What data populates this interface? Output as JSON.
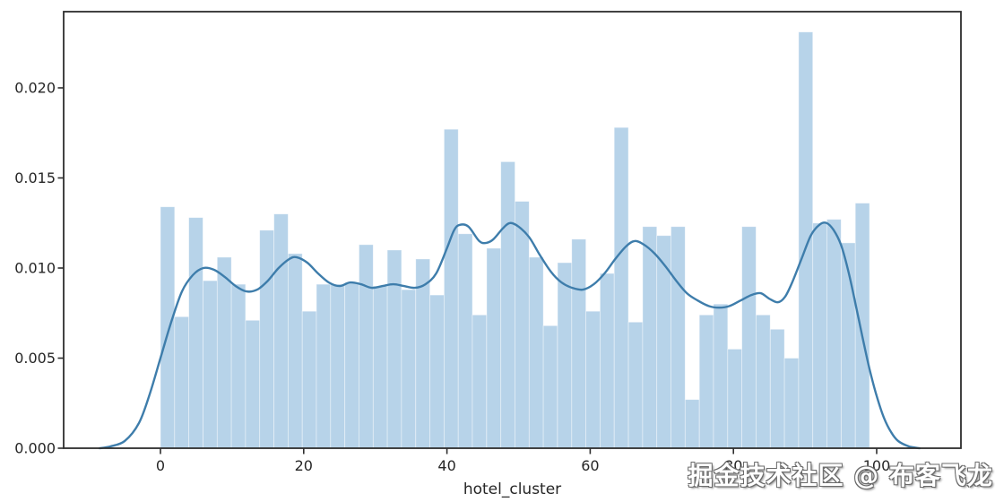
{
  "chart_data": {
    "type": "bar",
    "subtype": "histogram_with_kde",
    "title": "",
    "xlabel": "hotel_cluster",
    "ylabel": "",
    "x_tick_labels": [
      "0",
      "20",
      "40",
      "60",
      "80",
      "100"
    ],
    "x_tick_values": [
      0,
      20,
      40,
      60,
      80,
      100
    ],
    "y_tick_labels": [
      "0.000",
      "0.005",
      "0.010",
      "0.015",
      "0.020"
    ],
    "y_tick_values": [
      0.0,
      0.005,
      0.01,
      0.015,
      0.02
    ],
    "xlim": [
      -13.5,
      111.8
    ],
    "ylim": [
      0,
      0.0242
    ],
    "grid": false,
    "legend": null,
    "bin_start": 0,
    "bin_width": 1.98,
    "values": [
      0.0134,
      0.0073,
      0.0128,
      0.0093,
      0.0106,
      0.0091,
      0.0071,
      0.0121,
      0.013,
      0.0108,
      0.0076,
      0.0091,
      0.0091,
      0.0092,
      0.0113,
      0.009,
      0.011,
      0.0088,
      0.0105,
      0.0085,
      0.0177,
      0.0119,
      0.0074,
      0.0111,
      0.0159,
      0.0137,
      0.0106,
      0.0068,
      0.0103,
      0.0116,
      0.0076,
      0.0097,
      0.0178,
      0.007,
      0.0123,
      0.0118,
      0.0123,
      0.0027,
      0.0074,
      0.008,
      0.0055,
      0.0123,
      0.0074,
      0.0066,
      0.005,
      0.0231,
      0.0125,
      0.0127,
      0.0114,
      0.0136
    ],
    "kde_points": [
      [
        -8.5,
        0.0
      ],
      [
        -7,
        0.0001
      ],
      [
        -5,
        0.0004
      ],
      [
        -3,
        0.0014
      ],
      [
        -1.5,
        0.003
      ],
      [
        0,
        0.005
      ],
      [
        1.5,
        0.007
      ],
      [
        3,
        0.0087
      ],
      [
        4.5,
        0.0096
      ],
      [
        6,
        0.01
      ],
      [
        7.5,
        0.0099
      ],
      [
        9,
        0.0095
      ],
      [
        10.5,
        0.009
      ],
      [
        12,
        0.0087
      ],
      [
        13.5,
        0.0088
      ],
      [
        15,
        0.0093
      ],
      [
        16.5,
        0.01
      ],
      [
        18,
        0.0105
      ],
      [
        19,
        0.0106
      ],
      [
        20.5,
        0.0103
      ],
      [
        22,
        0.0097
      ],
      [
        23.5,
        0.0092
      ],
      [
        25,
        0.009
      ],
      [
        26.5,
        0.0092
      ],
      [
        28,
        0.0091
      ],
      [
        29.5,
        0.0089
      ],
      [
        31,
        0.009
      ],
      [
        32.5,
        0.0091
      ],
      [
        34,
        0.009
      ],
      [
        35.5,
        0.0089
      ],
      [
        37,
        0.0091
      ],
      [
        38.5,
        0.0097
      ],
      [
        40,
        0.0111
      ],
      [
        41,
        0.0121
      ],
      [
        41.8,
        0.0124
      ],
      [
        43,
        0.0123
      ],
      [
        44.5,
        0.0115
      ],
      [
        45.5,
        0.0114
      ],
      [
        46.5,
        0.0116
      ],
      [
        47.8,
        0.0122
      ],
      [
        48.8,
        0.0125
      ],
      [
        50,
        0.0123
      ],
      [
        51.5,
        0.0117
      ],
      [
        53,
        0.0107
      ],
      [
        54.5,
        0.0098
      ],
      [
        56,
        0.0092
      ],
      [
        57.5,
        0.0089
      ],
      [
        59,
        0.0088
      ],
      [
        60.5,
        0.0091
      ],
      [
        62,
        0.0097
      ],
      [
        63.5,
        0.0105
      ],
      [
        65,
        0.0112
      ],
      [
        66.2,
        0.0115
      ],
      [
        67.5,
        0.0113
      ],
      [
        69,
        0.0108
      ],
      [
        70.5,
        0.0101
      ],
      [
        72,
        0.0093
      ],
      [
        73.5,
        0.0086
      ],
      [
        75,
        0.0082
      ],
      [
        76.5,
        0.0079
      ],
      [
        78,
        0.0078
      ],
      [
        79.5,
        0.0079
      ],
      [
        81,
        0.0082
      ],
      [
        82.5,
        0.0085
      ],
      [
        83.8,
        0.0086
      ],
      [
        85,
        0.0083
      ],
      [
        86.2,
        0.0081
      ],
      [
        87.2,
        0.0084
      ],
      [
        88.2,
        0.0092
      ],
      [
        89.5,
        0.0105
      ],
      [
        90.8,
        0.0118
      ],
      [
        92,
        0.0124
      ],
      [
        93,
        0.0125
      ],
      [
        94,
        0.0121
      ],
      [
        95,
        0.0113
      ],
      [
        96,
        0.0099
      ],
      [
        97,
        0.0081
      ],
      [
        98,
        0.0062
      ],
      [
        99,
        0.0044
      ],
      [
        100,
        0.0029
      ],
      [
        101,
        0.0017
      ],
      [
        102,
        0.0009
      ],
      [
        103,
        0.0004
      ],
      [
        104.5,
        0.0001
      ],
      [
        106,
        0.0
      ]
    ],
    "colors": {
      "bar_fill": "#b7d3e9",
      "bar_seam": "rgba(255,255,255,0.5)",
      "kde_line": "#3e7dab",
      "spine": "#2e2e2e",
      "tick_label": "#262626"
    }
  },
  "watermark": {
    "text": "掘金技术社区 @ 布客飞龙"
  }
}
